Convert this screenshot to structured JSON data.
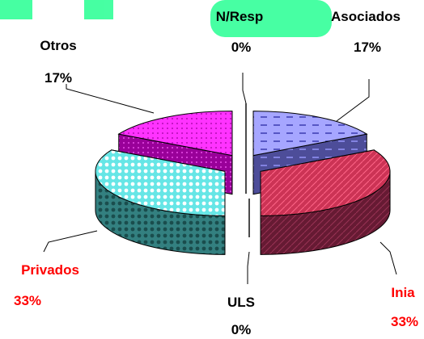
{
  "chart_data": {
    "type": "pie",
    "style": "3d-exploded",
    "slices": [
      {
        "label": "N/Resp",
        "value": 0,
        "pct_label": "0%",
        "color": "#000000",
        "label_color": "#000000"
      },
      {
        "label": "Asociados",
        "value": 17,
        "pct_label": "17%",
        "color": "#9999ff",
        "label_color": "#000000"
      },
      {
        "label": "Inia",
        "value": 33,
        "pct_label": "33%",
        "color": "#cc3366",
        "label_color": "#ff0000"
      },
      {
        "label": "ULS",
        "value": 0,
        "pct_label": "0%",
        "color": "#000000",
        "label_color": "#000000"
      },
      {
        "label": "Privados",
        "value": 33,
        "pct_label": "33%",
        "color": "#66ffff",
        "label_color": "#ff0000"
      },
      {
        "label": "Otros",
        "value": 17,
        "pct_label": "17%",
        "color": "#ff33ff",
        "label_color": "#000000"
      }
    ],
    "legend": "none",
    "background_accent": "#33ff99"
  }
}
